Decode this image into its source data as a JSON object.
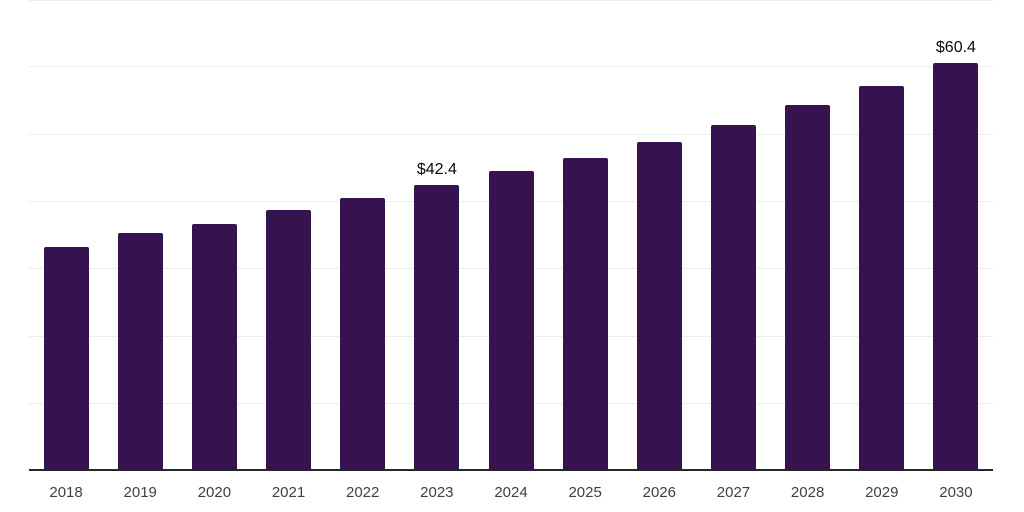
{
  "chart_data": {
    "type": "bar",
    "categories": [
      "2018",
      "2019",
      "2020",
      "2021",
      "2022",
      "2023",
      "2024",
      "2025",
      "2026",
      "2027",
      "2028",
      "2029",
      "2030"
    ],
    "values": [
      33.2,
      35.3,
      36.6,
      38.6,
      40.4,
      42.4,
      44.4,
      46.4,
      48.8,
      51.3,
      54.2,
      57.1,
      60.4
    ],
    "value_labels": [
      {
        "index": 5,
        "text": "$42.4"
      },
      {
        "index": 12,
        "text": "$60.4"
      }
    ],
    "title": "",
    "xlabel": "",
    "ylabel": "",
    "ylim": [
      0,
      70
    ],
    "gridline_step": 10,
    "grid": "horizontal",
    "legend": "none",
    "y_tick_labels_visible": false,
    "colors": {
      "bar": "#36124e",
      "axis_line": "#26262a",
      "gridline": "#ededf0",
      "tick_label": "#404040",
      "value_label": "#0a0a0a",
      "background": "#ffffff"
    }
  }
}
